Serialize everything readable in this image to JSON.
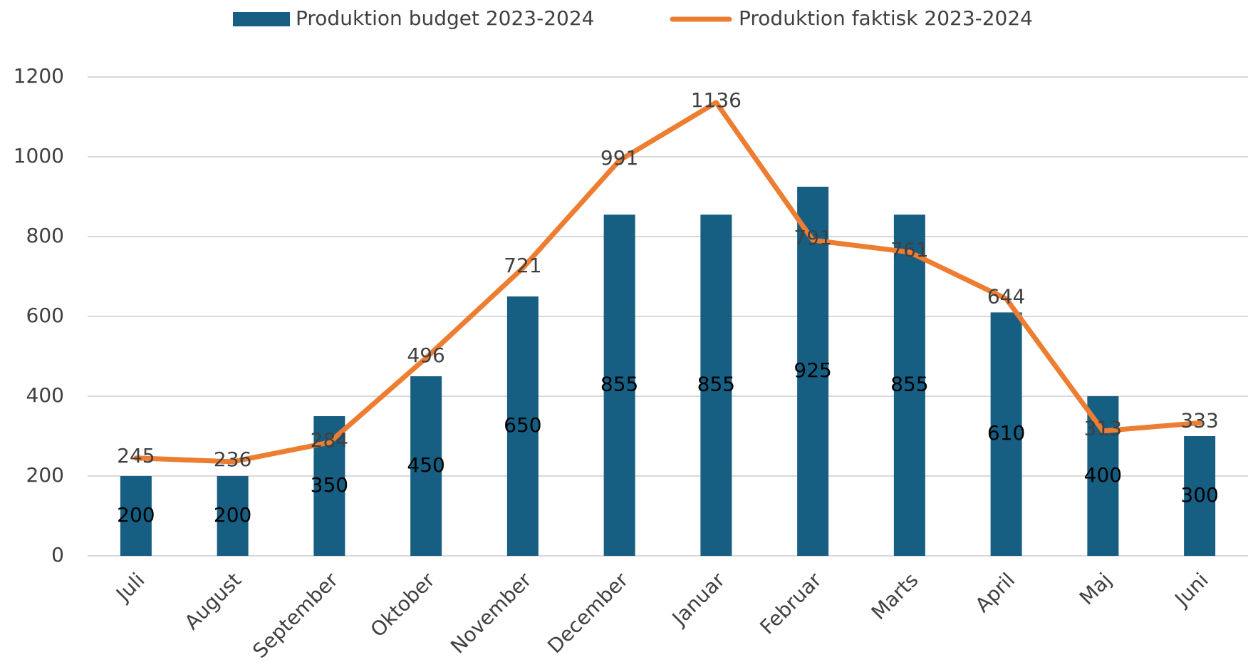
{
  "chart_data": {
    "type": "bar_line",
    "categories": [
      "Juli",
      "August",
      "September",
      "Oktober",
      "November",
      "December",
      "Januar",
      "Februar",
      "Marts",
      "April",
      "Maj",
      "Juni"
    ],
    "series": [
      {
        "name": "Produktion budget 2023-2024",
        "type": "bar",
        "color": "#165e82",
        "values": [
          200,
          200,
          350,
          450,
          650,
          855,
          855,
          925,
          855,
          610,
          400,
          300
        ]
      },
      {
        "name": "Produktion faktisk 2023-2024",
        "type": "line",
        "color": "#ed7d31",
        "values": [
          245,
          236,
          284,
          496,
          721,
          991,
          1136,
          791,
          761,
          644,
          313,
          333
        ]
      }
    ],
    "ylim": [
      0,
      1200
    ],
    "yticks": [
      0,
      200,
      400,
      600,
      800,
      1000,
      1200
    ],
    "grid": true,
    "legend": "top"
  }
}
